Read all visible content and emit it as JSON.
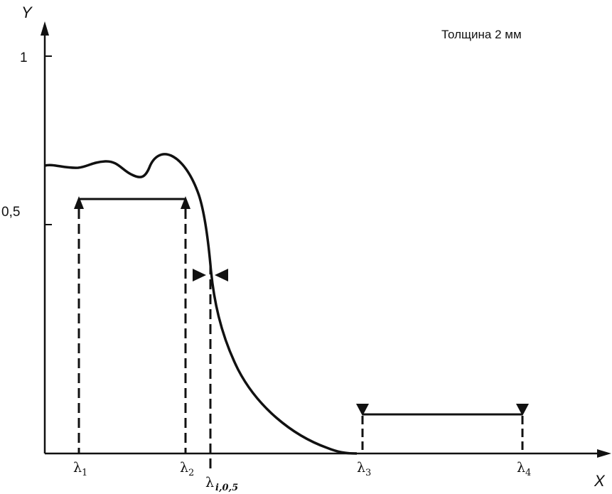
{
  "figure": {
    "note": "Толщина 2 мм",
    "y_axis_label": "Y",
    "x_axis_label": "X",
    "y_ticks": [
      "1",
      "0,5"
    ],
    "markers": [
      {
        "symbol": "λ",
        "sub": "1"
      },
      {
        "symbol": "λ",
        "sub": "2"
      },
      {
        "symbol": "λ",
        "sub": "i,0,5"
      },
      {
        "symbol": "λ",
        "sub": "3"
      },
      {
        "symbol": "λ",
        "sub": "4"
      }
    ],
    "line_color": "#111111"
  }
}
